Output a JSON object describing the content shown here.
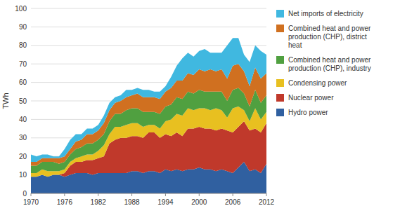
{
  "chart_data": {
    "type": "area",
    "stacked": true,
    "x": [
      1970,
      1971,
      1972,
      1973,
      1974,
      1975,
      1976,
      1977,
      1978,
      1979,
      1980,
      1981,
      1982,
      1983,
      1984,
      1985,
      1986,
      1987,
      1988,
      1989,
      1990,
      1991,
      1992,
      1993,
      1994,
      1995,
      1996,
      1997,
      1998,
      1999,
      2000,
      2001,
      2002,
      2003,
      2004,
      2005,
      2006,
      2007,
      2008,
      2009,
      2010,
      2011,
      2012
    ],
    "series": [
      {
        "name": "Hydro power",
        "color": "#3060a0",
        "values": [
          9,
          9,
          10,
          9,
          10,
          10,
          9,
          10,
          11,
          11,
          11,
          10,
          11,
          11,
          11,
          11,
          11,
          11,
          12,
          12,
          11,
          12,
          12,
          11,
          13,
          12,
          13,
          12,
          13,
          13,
          14,
          13,
          13,
          12,
          13,
          12,
          11,
          14,
          17,
          12,
          13,
          11,
          16
        ]
      },
      {
        "name": "Nuclear power",
        "color": "#c0392b",
        "values": [
          0,
          0,
          0,
          0,
          0,
          0,
          2,
          5,
          6,
          6,
          7,
          8,
          8,
          9,
          16,
          18,
          19,
          19,
          19,
          19,
          19,
          21,
          21,
          19,
          19,
          19,
          20,
          19,
          22,
          22,
          22,
          22,
          22,
          22,
          22,
          22,
          22,
          22,
          22,
          22,
          22,
          22,
          22
        ]
      },
      {
        "name": "Condensing power",
        "color": "#e8c020",
        "values": [
          2,
          2,
          3,
          3,
          2,
          2,
          2,
          2,
          2,
          3,
          3,
          3,
          4,
          6,
          5,
          7,
          6,
          7,
          7,
          7,
          6,
          4,
          4,
          5,
          7,
          9,
          10,
          11,
          11,
          10,
          10,
          11,
          10,
          12,
          10,
          7,
          13,
          11,
          6,
          5,
          11,
          7,
          6
        ]
      },
      {
        "name": "Combined heat and power\nproduction (CHP), industry",
        "color": "#50a040",
        "values": [
          4,
          4,
          4,
          5,
          5,
          4,
          4,
          4,
          5,
          5,
          6,
          6,
          6,
          6,
          7,
          7,
          7,
          8,
          8,
          8,
          8,
          7,
          7,
          8,
          8,
          8,
          9,
          9,
          9,
          9,
          10,
          9,
          10,
          9,
          10,
          9,
          10,
          10,
          9,
          8,
          10,
          9,
          9
        ]
      },
      {
        "name": "Combined heat and power\nproduction (CHP), district\nheat",
        "color": "#d07020",
        "values": [
          2,
          2,
          2,
          2,
          2,
          3,
          3,
          3,
          4,
          4,
          5,
          5,
          5,
          6,
          6,
          6,
          7,
          7,
          7,
          8,
          8,
          8,
          8,
          8,
          8,
          9,
          9,
          10,
          10,
          10,
          11,
          11,
          12,
          11,
          12,
          12,
          13,
          13,
          12,
          11,
          12,
          13,
          12
        ]
      },
      {
        "name": "Net imports of electricity",
        "color": "#40b8e0",
        "values": [
          4,
          3,
          2,
          2,
          1,
          1,
          4,
          5,
          4,
          3,
          3,
          3,
          3,
          4,
          4,
          3,
          3,
          4,
          3,
          3,
          4,
          4,
          3,
          4,
          3,
          6,
          8,
          12,
          11,
          10,
          10,
          12,
          9,
          10,
          9,
          18,
          15,
          14,
          9,
          13,
          12,
          15,
          10
        ]
      }
    ],
    "xlim": [
      1970,
      2012
    ],
    "xticks": [
      1970,
      1976,
      1982,
      1988,
      1994,
      2000,
      2006,
      2012
    ],
    "ylim": [
      0,
      100
    ],
    "yticks": [
      0,
      10,
      20,
      30,
      40,
      50,
      60,
      70,
      80,
      90,
      100
    ],
    "ylabel": "TWh",
    "grid": true,
    "legend": "right"
  }
}
